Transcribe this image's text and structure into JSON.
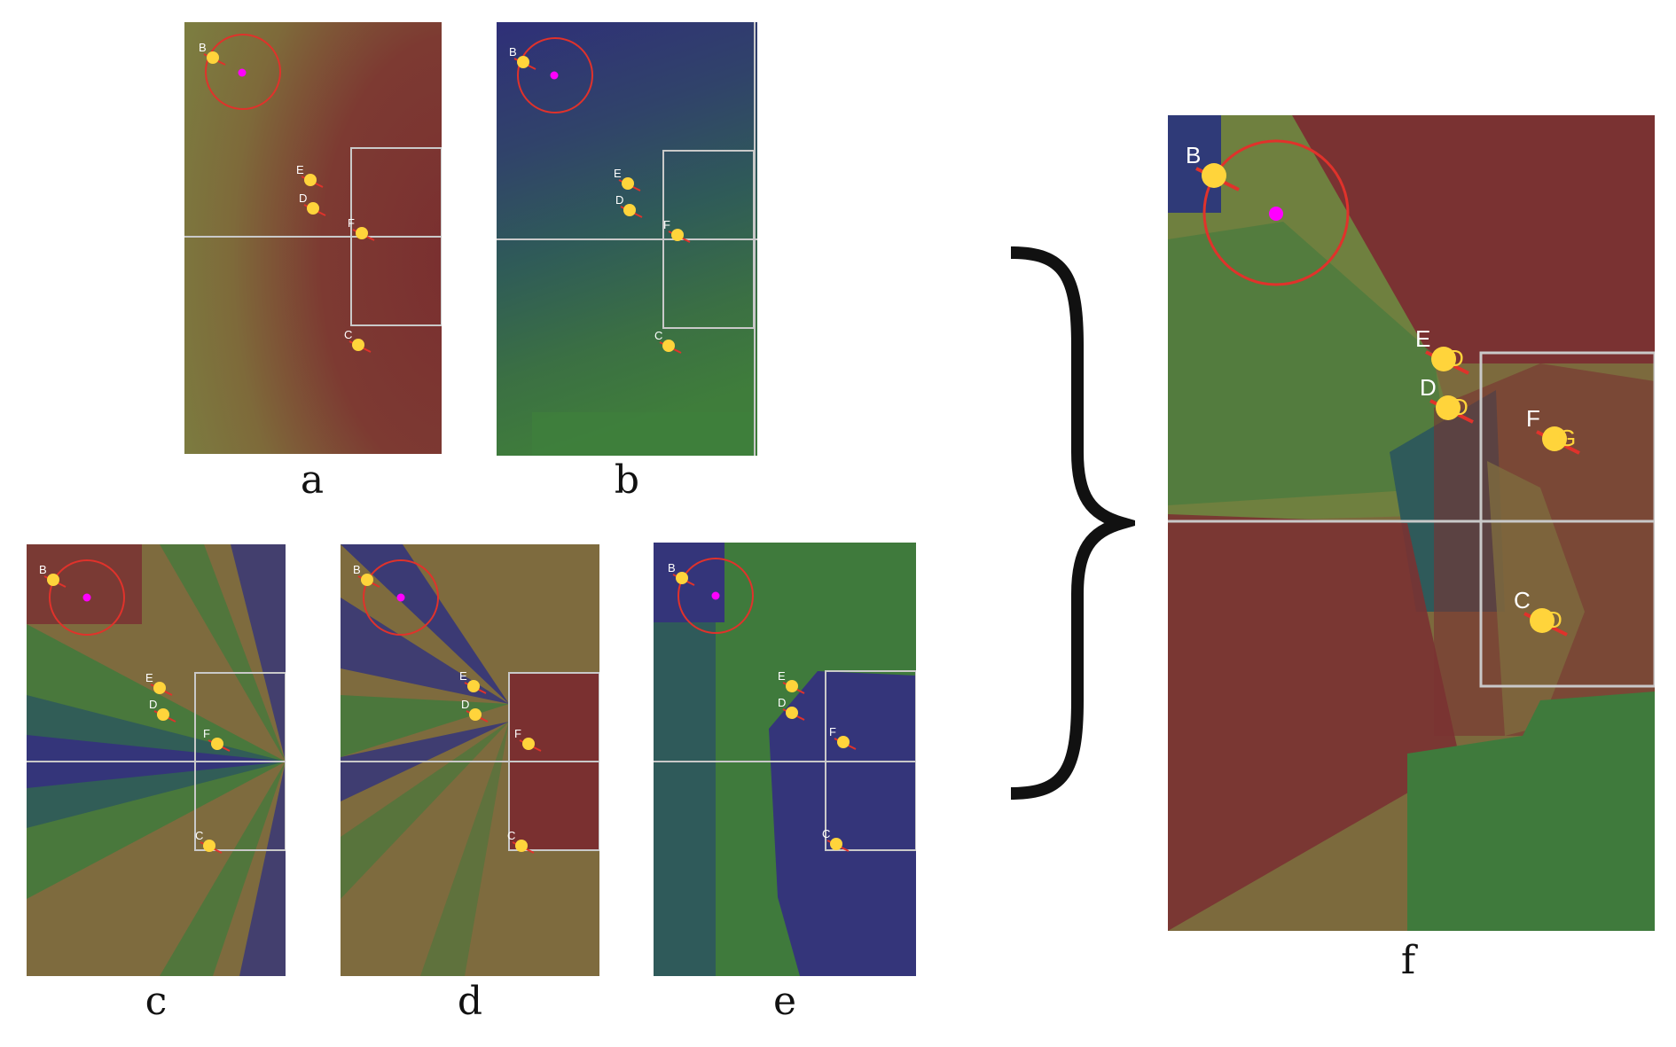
{
  "figure": {
    "captions": {
      "a": "a",
      "b": "b",
      "c": "c",
      "d": "d",
      "e": "e",
      "f": "f"
    },
    "colors": {
      "pitch_red": "#7d3532",
      "pitch_olive": "#7e7a3e",
      "pitch_green": "#3f7a3c",
      "pitch_blue": "#34357a",
      "pitch_teal": "#2f5a5a",
      "line_white": "#c9c9c9",
      "ring_red": "#e0322b",
      "ball_magenta": "#ff00ff",
      "player_yellow": "#ffd43b"
    },
    "panels": [
      {
        "id": "a",
        "players": [
          {
            "label": "B"
          },
          {
            "label": "E"
          },
          {
            "label": "D"
          },
          {
            "label": "F"
          },
          {
            "label": "C"
          }
        ]
      },
      {
        "id": "b",
        "players": [
          {
            "label": "B"
          },
          {
            "label": "E"
          },
          {
            "label": "D"
          },
          {
            "label": "F"
          },
          {
            "label": "C"
          }
        ]
      },
      {
        "id": "c",
        "players": [
          {
            "label": "B"
          },
          {
            "label": "E"
          },
          {
            "label": "D"
          },
          {
            "label": "F"
          },
          {
            "label": "C"
          }
        ]
      },
      {
        "id": "d",
        "players": [
          {
            "label": "B"
          },
          {
            "label": "E"
          },
          {
            "label": "D"
          },
          {
            "label": "F"
          },
          {
            "label": "C"
          }
        ]
      },
      {
        "id": "e",
        "players": [
          {
            "label": "B"
          },
          {
            "label": "E"
          },
          {
            "label": "D"
          },
          {
            "label": "F"
          },
          {
            "label": "C"
          }
        ]
      },
      {
        "id": "f",
        "players": [
          {
            "label": "B"
          },
          {
            "label": "E",
            "mark": "D"
          },
          {
            "label": "D",
            "mark": "D"
          },
          {
            "label": "F",
            "mark": "G"
          },
          {
            "label": "C",
            "mark": "D"
          }
        ]
      }
    ]
  }
}
